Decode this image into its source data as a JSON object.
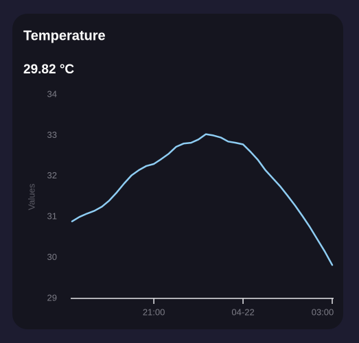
{
  "chart_data": {
    "type": "line",
    "title": "Temperature",
    "subtitle": "29.82 °C",
    "y_label": "Values",
    "categories": [
      null,
      null,
      null,
      null,
      null,
      null,
      null,
      null,
      null,
      null,
      null,
      "21:00",
      null,
      null,
      null,
      null,
      null,
      null,
      null,
      null,
      null,
      null,
      null,
      "04-22",
      null,
      null,
      null,
      null,
      null,
      null,
      null,
      null,
      null,
      null,
      null,
      "03:00"
    ],
    "series": [
      {
        "name": "Temperature",
        "color": "#8ecdf3",
        "values": [
          30.89,
          31.0,
          31.08,
          31.15,
          31.25,
          31.4,
          31.6,
          31.82,
          32.02,
          32.15,
          32.25,
          32.3,
          32.42,
          32.55,
          32.72,
          32.8,
          32.82,
          32.9,
          33.03,
          33.0,
          32.95,
          32.85,
          32.82,
          32.78,
          32.6,
          32.4,
          32.15,
          31.95,
          31.75,
          31.52,
          31.28,
          31.02,
          30.75,
          30.45,
          30.15,
          29.82
        ]
      }
    ],
    "ylim": [
      29,
      34
    ],
    "yticks": [
      29,
      30,
      31,
      32,
      33,
      34
    ],
    "grid": false
  }
}
